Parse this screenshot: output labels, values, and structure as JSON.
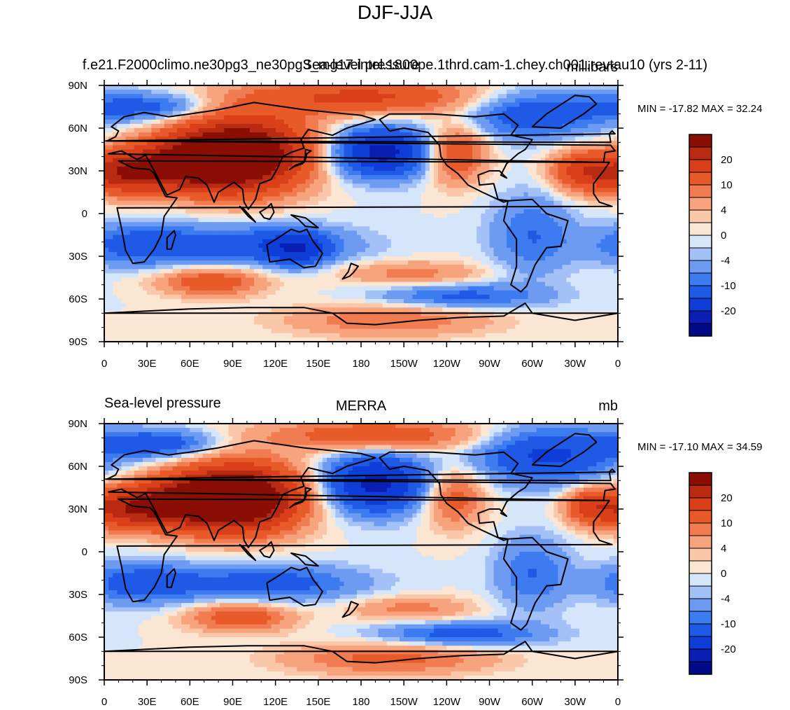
{
  "figure": {
    "title": "DJF-JJA",
    "colors": {
      "levels": [
        "#020a8a",
        "#0a1eb4",
        "#0f3dd8",
        "#1e5ae6",
        "#3d7bf0",
        "#6d9bf2",
        "#a4c1f7",
        "#d5e6fb",
        "#fbe6d4",
        "#fbc7a9",
        "#f7a37d",
        "#f27c52",
        "#e85a2a",
        "#d9401a",
        "#b82a12",
        "#8a0e04"
      ],
      "ocean_bg": "#fbe5d3",
      "coast": "#000000"
    }
  },
  "chart_data": [
    {
      "type": "heatmap",
      "name": "model",
      "left_title": "Sea-level pressure",
      "center_title": "f.e21.F2000climo.ne30pg3_ne30pg3_mg17.intel.1800pe.1thrd.cam-1.chey.ch001.revtau10 (yrs 2-11)",
      "right_title": "millibars",
      "min_max_label": "MIN = -17.82 MAX =  32.24",
      "min": -17.82,
      "max": 32.24,
      "x_ticks": [
        "0",
        "30E",
        "60E",
        "90E",
        "120E",
        "150E",
        "180",
        "150W",
        "120W",
        "90W",
        "60W",
        "30W",
        "0"
      ],
      "y_ticks": [
        "90N",
        "60N",
        "30N",
        "0",
        "30S",
        "60S",
        "90S"
      ],
      "lon_range": [
        0,
        360
      ],
      "lat_range": [
        -90,
        90
      ],
      "colorbar_labels": [
        "20",
        "10",
        "4",
        "0",
        "-4",
        "-10",
        "-20"
      ],
      "colorbar_bounds": [
        -25,
        -20,
        -15,
        -10,
        -6,
        -4,
        -2,
        -1,
        0,
        1,
        2,
        4,
        6,
        10,
        15,
        20,
        25
      ],
      "features": [
        {
          "lon": 95,
          "lat": 42,
          "amp": 30,
          "slon": 32,
          "slat": 18
        },
        {
          "lon": 55,
          "lat": 35,
          "amp": 16,
          "slon": 30,
          "slat": 12
        },
        {
          "lon": 15,
          "lat": 28,
          "amp": 15,
          "slon": 22,
          "slat": 10
        },
        {
          "lon": 180,
          "lat": 82,
          "amp": 11,
          "slon": 60,
          "slat": 9
        },
        {
          "lon": 246,
          "lat": 42,
          "amp": 10,
          "slon": 15,
          "slat": 14
        },
        {
          "lon": 335,
          "lat": 30,
          "amp": 12,
          "slon": 15,
          "slat": 10
        },
        {
          "lon": 195,
          "lat": 43,
          "amp": -17,
          "slon": 24,
          "slat": 12
        },
        {
          "lon": 300,
          "lat": 70,
          "amp": -9,
          "slon": 35,
          "slat": 12
        },
        {
          "lon": 30,
          "lat": 75,
          "amp": -8,
          "slon": 35,
          "slat": 7
        },
        {
          "lon": 25,
          "lat": -22,
          "amp": -8,
          "slon": 30,
          "slat": 10
        },
        {
          "lon": 110,
          "lat": -22,
          "amp": -8,
          "slon": 45,
          "slat": 10
        },
        {
          "lon": 135,
          "lat": -25,
          "amp": -10,
          "slon": 15,
          "slat": 8
        },
        {
          "lon": 300,
          "lat": -15,
          "amp": -6,
          "slon": 20,
          "slat": 20
        },
        {
          "lon": 75,
          "lat": -48,
          "amp": 9,
          "slon": 25,
          "slat": 7
        },
        {
          "lon": 215,
          "lat": -42,
          "amp": 5,
          "slon": 35,
          "slat": 6
        },
        {
          "lon": 250,
          "lat": -58,
          "amp": -7,
          "slon": 40,
          "slat": 6
        },
        {
          "lon": 200,
          "lat": -75,
          "amp": 6,
          "slon": 50,
          "slat": 8
        }
      ]
    },
    {
      "type": "heatmap",
      "name": "obs",
      "left_title": "Sea-level pressure",
      "center_title": "MERRA",
      "right_title": "mb",
      "min_max_label": "MIN = -17.10 MAX =  34.59",
      "min": -17.1,
      "max": 34.59,
      "x_ticks": [
        "0",
        "30E",
        "60E",
        "90E",
        "120E",
        "150E",
        "180",
        "150W",
        "120W",
        "90W",
        "60W",
        "30W",
        "0"
      ],
      "y_ticks": [
        "90N",
        "60N",
        "30N",
        "0",
        "30S",
        "60S",
        "90S"
      ],
      "lon_range": [
        0,
        360
      ],
      "lat_range": [
        -90,
        90
      ],
      "colorbar_labels": [
        "20",
        "10",
        "4",
        "0",
        "-4",
        "-10",
        "-20"
      ],
      "colorbar_bounds": [
        -25,
        -20,
        -15,
        -10,
        -6,
        -4,
        -2,
        -1,
        0,
        1,
        2,
        4,
        6,
        10,
        15,
        20,
        25
      ],
      "features": [
        {
          "lon": 95,
          "lat": 38,
          "amp": 30,
          "slon": 30,
          "slat": 16
        },
        {
          "lon": 55,
          "lat": 35,
          "amp": 16,
          "slon": 28,
          "slat": 12
        },
        {
          "lon": 15,
          "lat": 30,
          "amp": 14,
          "slon": 22,
          "slat": 10
        },
        {
          "lon": 190,
          "lat": 82,
          "amp": 9,
          "slon": 55,
          "slat": 8
        },
        {
          "lon": 245,
          "lat": 38,
          "amp": 8,
          "slon": 15,
          "slat": 14
        },
        {
          "lon": 340,
          "lat": 32,
          "amp": 10,
          "slon": 12,
          "slat": 9
        },
        {
          "lon": 190,
          "lat": 48,
          "amp": -17,
          "slon": 25,
          "slat": 14
        },
        {
          "lon": 310,
          "lat": 68,
          "amp": -11,
          "slon": 35,
          "slat": 14
        },
        {
          "lon": 35,
          "lat": 76,
          "amp": -9,
          "slon": 30,
          "slat": 7
        },
        {
          "lon": 25,
          "lat": -22,
          "amp": -8,
          "slon": 28,
          "slat": 10
        },
        {
          "lon": 115,
          "lat": -22,
          "amp": -8,
          "slon": 45,
          "slat": 9
        },
        {
          "lon": 300,
          "lat": -15,
          "amp": -6,
          "slon": 18,
          "slat": 18
        },
        {
          "lon": 95,
          "lat": -46,
          "amp": 9,
          "slon": 25,
          "slat": 7
        },
        {
          "lon": 215,
          "lat": -40,
          "amp": 5,
          "slon": 30,
          "slat": 6
        },
        {
          "lon": 250,
          "lat": -58,
          "amp": -8,
          "slon": 40,
          "slat": 6
        },
        {
          "lon": 200,
          "lat": -75,
          "amp": 7,
          "slon": 50,
          "slat": 8
        }
      ]
    }
  ]
}
